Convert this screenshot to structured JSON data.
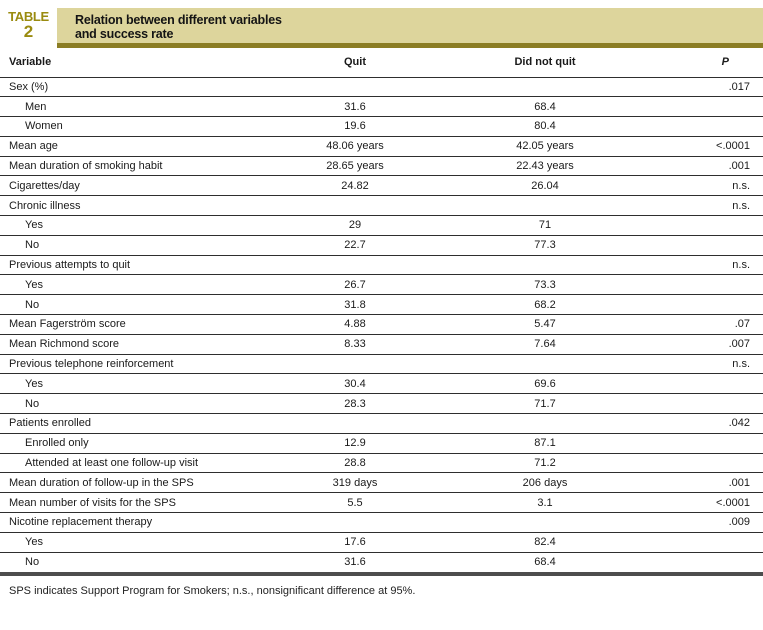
{
  "label": {
    "word": "TABLE",
    "number": "2"
  },
  "title": {
    "line1": "Relation between different variables",
    "line2": "and success rate"
  },
  "columns": [
    "Variable",
    "Quit",
    "Did not quit",
    "P"
  ],
  "rows": [
    {
      "variable": "Sex (%)",
      "indent": false,
      "quit": "",
      "dnq": "",
      "p": ".017"
    },
    {
      "variable": "Men",
      "indent": true,
      "quit": "31.6",
      "dnq": "68.4",
      "p": ""
    },
    {
      "variable": "Women",
      "indent": true,
      "quit": "19.6",
      "dnq": "80.4",
      "p": ""
    },
    {
      "variable": "Mean age",
      "indent": false,
      "quit": "48.06 years",
      "dnq": "42.05 years",
      "p": "<.0001"
    },
    {
      "variable": "Mean duration of smoking habit",
      "indent": false,
      "quit": "28.65 years",
      "dnq": "22.43 years",
      "p": ".001"
    },
    {
      "variable": "Cigarettes/day",
      "indent": false,
      "quit": "24.82",
      "dnq": "26.04",
      "p": "n.s."
    },
    {
      "variable": "Chronic illness",
      "indent": false,
      "quit": "",
      "dnq": "",
      "p": "n.s."
    },
    {
      "variable": "Yes",
      "indent": true,
      "quit": "29",
      "dnq": "71",
      "p": ""
    },
    {
      "variable": "No",
      "indent": true,
      "quit": "22.7",
      "dnq": "77.3",
      "p": ""
    },
    {
      "variable": "Previous attempts to quit",
      "indent": false,
      "quit": "",
      "dnq": "",
      "p": "n.s."
    },
    {
      "variable": "Yes",
      "indent": true,
      "quit": "26.7",
      "dnq": "73.3",
      "p": ""
    },
    {
      "variable": "No",
      "indent": true,
      "quit": "31.8",
      "dnq": "68.2",
      "p": ""
    },
    {
      "variable": "Mean Fagerström score",
      "indent": false,
      "quit": "4.88",
      "dnq": "5.47",
      "p": ".07"
    },
    {
      "variable": "Mean Richmond score",
      "indent": false,
      "quit": "8.33",
      "dnq": "7.64",
      "p": ".007"
    },
    {
      "variable": "Previous telephone reinforcement",
      "indent": false,
      "quit": "",
      "dnq": "",
      "p": "n.s."
    },
    {
      "variable": "Yes",
      "indent": true,
      "quit": "30.4",
      "dnq": "69.6",
      "p": ""
    },
    {
      "variable": "No",
      "indent": true,
      "quit": "28.3",
      "dnq": "71.7",
      "p": ""
    },
    {
      "variable": "Patients enrolled",
      "indent": false,
      "quit": "",
      "dnq": "",
      "p": ".042"
    },
    {
      "variable": "Enrolled only",
      "indent": true,
      "quit": "12.9",
      "dnq": "87.1",
      "p": ""
    },
    {
      "variable": "Attended at least one follow-up visit",
      "indent": true,
      "quit": "28.8",
      "dnq": "71.2",
      "p": ""
    },
    {
      "variable": "Mean duration of follow-up in the SPS",
      "indent": false,
      "quit": "319 days",
      "dnq": "206 days",
      "p": ".001"
    },
    {
      "variable": "Mean number of visits for the SPS",
      "indent": false,
      "quit": "5.5",
      "dnq": "3.1",
      "p": "<.0001"
    },
    {
      "variable": "Nicotine replacement therapy",
      "indent": false,
      "quit": "",
      "dnq": "",
      "p": ".009"
    },
    {
      "variable": "Yes",
      "indent": true,
      "quit": "17.6",
      "dnq": "82.4",
      "p": ""
    },
    {
      "variable": "No",
      "indent": true,
      "quit": "31.6",
      "dnq": "68.4",
      "p": ""
    }
  ],
  "footnote": "SPS indicates Support Program for Smokers; n.s., nonsignificant difference at 95%.",
  "colors": {
    "accent_olive": "#9a8b10",
    "title_bg": "#ddd59c",
    "rule_olive": "#8b7d24",
    "bottom_rule": "#4d4d4d"
  }
}
